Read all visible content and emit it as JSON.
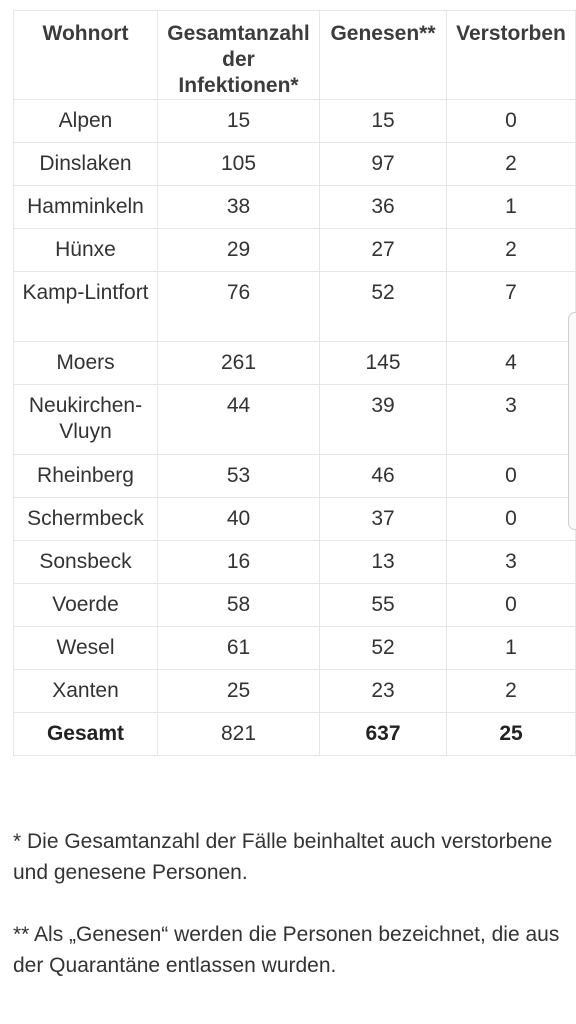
{
  "table": {
    "headers": [
      "Wohnort",
      "Gesamtanzahl der Infektionen*",
      "Genesen**",
      "Verstorben"
    ],
    "rows": [
      {
        "ort": "Alpen",
        "gesamt": "15",
        "genesen": "15",
        "verstorben": "0"
      },
      {
        "ort": "Dinslaken",
        "gesamt": "105",
        "genesen": "97",
        "verstorben": "2"
      },
      {
        "ort": "Hamminkeln",
        "gesamt": "38",
        "genesen": "36",
        "verstorben": "1"
      },
      {
        "ort": "Hünxe",
        "gesamt": "29",
        "genesen": "27",
        "verstorben": "2"
      },
      {
        "ort": "Kamp-Lintfort",
        "gesamt": "76",
        "genesen": "52",
        "verstorben": "7"
      },
      {
        "ort": "Moers",
        "gesamt": "261",
        "genesen": "145",
        "verstorben": "4"
      },
      {
        "ort": "Neukirchen-Vluyn",
        "gesamt": "44",
        "genesen": "39",
        "verstorben": "3"
      },
      {
        "ort": "Rheinberg",
        "gesamt": "53",
        "genesen": "46",
        "verstorben": "0"
      },
      {
        "ort": "Schermbeck",
        "gesamt": "40",
        "genesen": "37",
        "verstorben": "0"
      },
      {
        "ort": "Sonsbeck",
        "gesamt": "16",
        "genesen": "13",
        "verstorben": "3"
      },
      {
        "ort": "Voerde",
        "gesamt": "58",
        "genesen": "55",
        "verstorben": "0"
      },
      {
        "ort": "Wesel",
        "gesamt": "61",
        "genesen": "52",
        "verstorben": "1"
      },
      {
        "ort": "Xanten",
        "gesamt": "25",
        "genesen": "23",
        "verstorben": "2"
      }
    ],
    "total": {
      "ort": "Gesamt",
      "gesamt": "821",
      "genesen": "637",
      "verstorben": "25"
    }
  },
  "notes": {
    "note1": "* Die Gesamtanzahl der Fälle beinhaltet auch verstorbene und genesene Personen.",
    "note2": "** Als „Genesen“ werden die Personen bezeichnet, die aus der Quarantäne entlassen wurden."
  }
}
